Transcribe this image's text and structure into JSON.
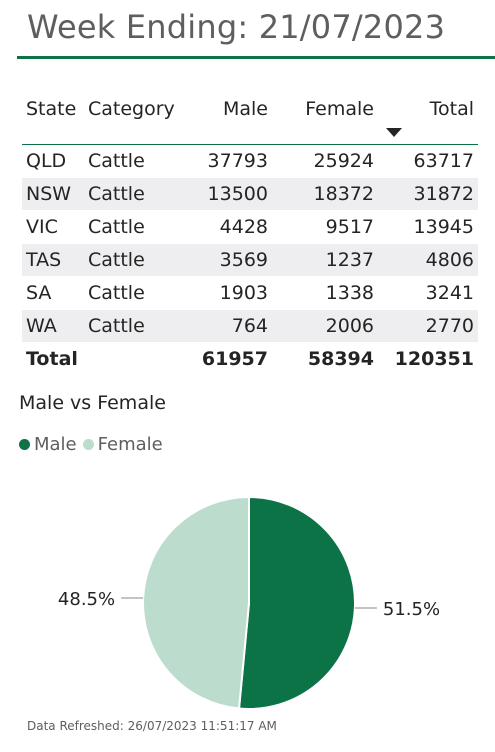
{
  "header": {
    "title": "Week Ending: 21/07/2023"
  },
  "table": {
    "columns": [
      "State",
      "Category",
      "Male",
      "Female",
      "Total"
    ],
    "sorted_column": "Total",
    "sort_direction": "descending",
    "rows": [
      [
        "QLD",
        "Cattle",
        "37793",
        "25924",
        "63717"
      ],
      [
        "NSW",
        "Cattle",
        "13500",
        "18372",
        "31872"
      ],
      [
        "VIC",
        "Cattle",
        "4428",
        "9517",
        "13945"
      ],
      [
        "TAS",
        "Cattle",
        "3569",
        "1237",
        "4806"
      ],
      [
        "SA",
        "Cattle",
        "1903",
        "1338",
        "3241"
      ],
      [
        "WA",
        "Cattle",
        "764",
        "2006",
        "2770"
      ]
    ],
    "total": [
      "Total",
      "",
      "61957",
      "58394",
      "120351"
    ]
  },
  "chart_data": {
    "type": "pie",
    "title": "Male vs Female",
    "legend_position": "top-left",
    "series": [
      {
        "name": "Male",
        "value": 51.5,
        "label": "51.5%",
        "color": "#0b7346"
      },
      {
        "name": "Female",
        "value": 48.5,
        "label": "48.5%",
        "color": "#bcdccd"
      }
    ]
  },
  "footer": {
    "refreshed": "Data Refreshed: 26/07/2023 11:51:17 AM"
  },
  "colors": {
    "accent": "#0b7346",
    "accent_light": "#bcdccd",
    "row_band": "#eeedf0"
  }
}
